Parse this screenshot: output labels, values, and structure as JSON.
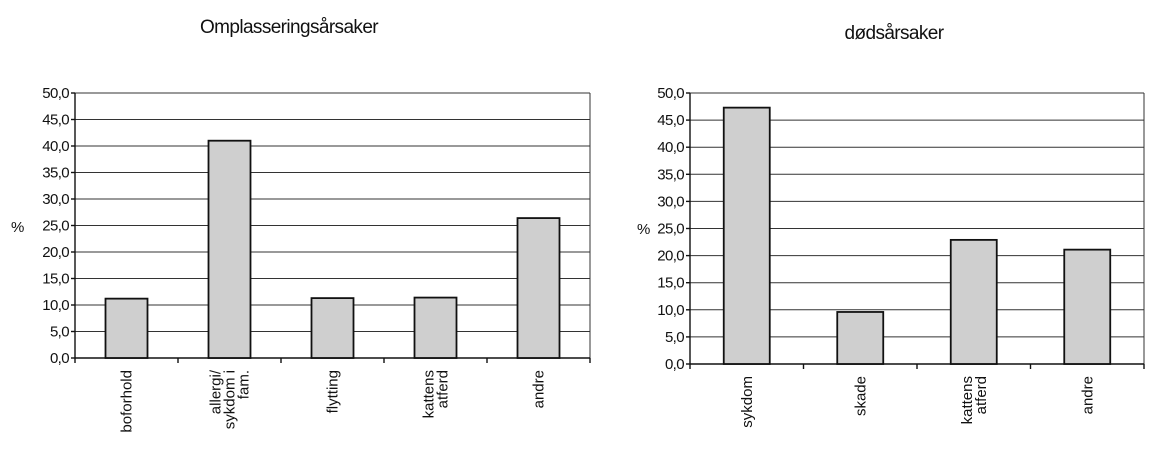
{
  "chart_data": [
    {
      "type": "bar",
      "title": "Omplasseringsårsaker",
      "ylabel": "%",
      "xlabel": "",
      "ylim": [
        0,
        50
      ],
      "yticks": [
        "0,0",
        "5,0",
        "10,0",
        "15,0",
        "20,0",
        "25,0",
        "30,0",
        "35,0",
        "40,0",
        "45,0",
        "50,0"
      ],
      "grid": true,
      "categories": [
        [
          "boforhold"
        ],
        [
          "allergi/",
          "sykdom i",
          "fam."
        ],
        [
          "flytting"
        ],
        [
          "kattens",
          "atferd"
        ],
        [
          "andre"
        ]
      ],
      "values": [
        11.2,
        41.0,
        11.3,
        11.4,
        26.4
      ]
    },
    {
      "type": "bar",
      "title": "dødsårsaker",
      "ylabel": "%",
      "xlabel": "",
      "ylim": [
        0,
        50
      ],
      "yticks": [
        "0,0",
        "5,0",
        "10,0",
        "15,0",
        "20,0",
        "25,0",
        "30,0",
        "35,0",
        "40,0",
        "45,0",
        "50,0"
      ],
      "grid": true,
      "categories": [
        [
          "sykdom"
        ],
        [
          "skade"
        ],
        [
          "kattens",
          "atferd"
        ],
        [
          "andre"
        ]
      ],
      "values": [
        47.3,
        9.6,
        22.9,
        21.1
      ]
    }
  ]
}
